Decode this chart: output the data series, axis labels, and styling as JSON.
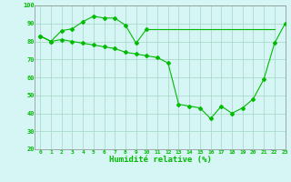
{
  "title": "",
  "xlabel": "Humidité relative (%)",
  "ylabel": "",
  "background_color": "#d6f5f5",
  "grid_color": "#aaddcc",
  "line_color": "#00bb00",
  "xlim": [
    -0.5,
    23
  ],
  "ylim": [
    20,
    100
  ],
  "xticks": [
    0,
    1,
    2,
    3,
    4,
    5,
    6,
    7,
    8,
    9,
    10,
    11,
    12,
    13,
    14,
    15,
    16,
    17,
    18,
    19,
    20,
    21,
    22,
    23
  ],
  "yticks": [
    20,
    30,
    40,
    50,
    60,
    70,
    80,
    90,
    100
  ],
  "series": [
    {
      "x": [
        0,
        1,
        2,
        3,
        4,
        5,
        6,
        7,
        8,
        9,
        10
      ],
      "y": [
        83,
        80,
        86,
        87,
        91,
        94,
        93,
        93,
        89,
        79,
        87
      ],
      "markers": true
    },
    {
      "x": [
        0,
        1,
        2,
        3,
        4,
        5,
        6,
        7,
        8,
        9,
        10,
        11,
        12,
        13,
        14,
        15,
        16,
        17,
        18,
        19,
        20,
        21,
        22,
        23
      ],
      "y": [
        83,
        80,
        81,
        80,
        79,
        78,
        77,
        76,
        74,
        73,
        72,
        71,
        68,
        45,
        44,
        43,
        37,
        44,
        40,
        43,
        48,
        59,
        79,
        90
      ],
      "markers": true
    },
    {
      "x": [
        10,
        11,
        12,
        13,
        14,
        15,
        16,
        17,
        18,
        19,
        20,
        21,
        22
      ],
      "y": [
        87,
        87,
        87,
        87,
        87,
        87,
        87,
        87,
        87,
        87,
        87,
        87,
        87
      ],
      "markers": false
    }
  ]
}
